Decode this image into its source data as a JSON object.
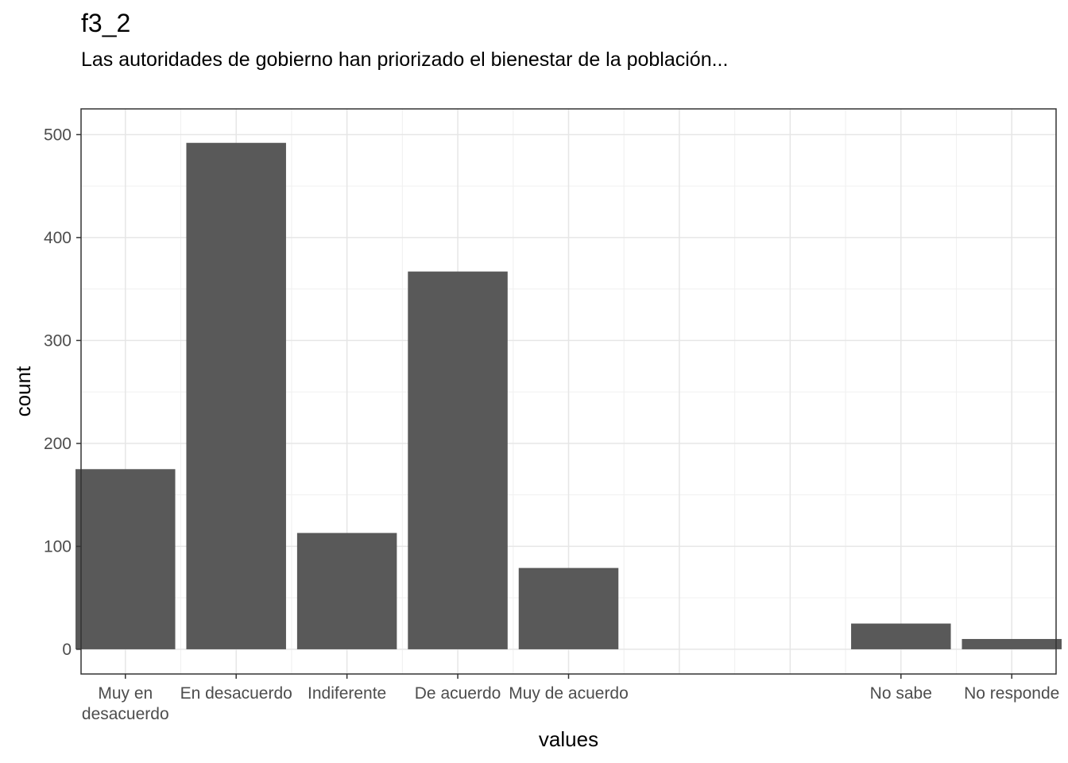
{
  "chart_data": {
    "type": "bar",
    "title": "f3_2",
    "subtitle": "Las autoridades de gobierno han priorizado el bienestar de la población...",
    "xlabel": "values",
    "ylabel": "count",
    "ylim": [
      -24,
      525
    ],
    "yticks": [
      0,
      100,
      200,
      300,
      400,
      500
    ],
    "grid": true,
    "bar_color": "#595959",
    "categories": [
      {
        "label": [
          "Muy en",
          "desacuerdo"
        ],
        "pos": 1,
        "value": 175
      },
      {
        "label": [
          "En desacuerdo"
        ],
        "pos": 2,
        "value": 492
      },
      {
        "label": [
          "Indiferente"
        ],
        "pos": 3,
        "value": 113
      },
      {
        "label": [
          "De acuerdo"
        ],
        "pos": 4,
        "value": 367
      },
      {
        "label": [
          "Muy de acuerdo"
        ],
        "pos": 5,
        "value": 79
      },
      {
        "label": [
          "No sabe"
        ],
        "pos": 8,
        "value": 25
      },
      {
        "label": [
          "No responde"
        ],
        "pos": 9,
        "value": 10
      }
    ],
    "xlim": [
      0.6,
      9.4
    ]
  }
}
